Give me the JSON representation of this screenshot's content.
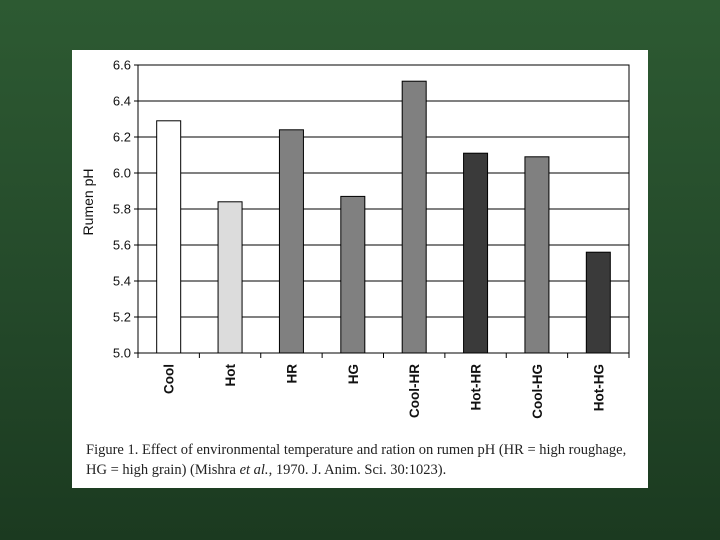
{
  "chart_data": {
    "type": "bar",
    "categories": [
      "Cool",
      "Hot",
      "HR",
      "HG",
      "Cool-HR",
      "Hot-HR",
      "Cool-HG",
      "Hot-HG"
    ],
    "values": [
      6.29,
      5.84,
      6.24,
      5.87,
      6.51,
      6.11,
      6.09,
      5.56
    ],
    "bar_colors": [
      "#ffffff",
      "#dcdcdc",
      "#808080",
      "#808080",
      "#808080",
      "#3a3a3a",
      "#808080",
      "#3a3a3a"
    ],
    "ylabel": "Rumen pH",
    "xlabel": "",
    "ylim": [
      5.0,
      6.6
    ],
    "yticks": [
      "5.0",
      "5.2",
      "5.4",
      "5.6",
      "5.8",
      "6.0",
      "6.2",
      "6.4",
      "6.6"
    ],
    "grid": true,
    "legend": "none"
  },
  "caption": {
    "part1": "Figure 1.  Effect of environmental temperature and ration on rumen pH (HR = high roughage, HG = high grain) (Mishra ",
    "etal": "et al.",
    "part2": ", 1970. J. Anim. Sci. 30:1023)."
  },
  "colors": {
    "background": "#2d5a32",
    "figure_background": "#ffffff",
    "gridline": "#000000"
  }
}
